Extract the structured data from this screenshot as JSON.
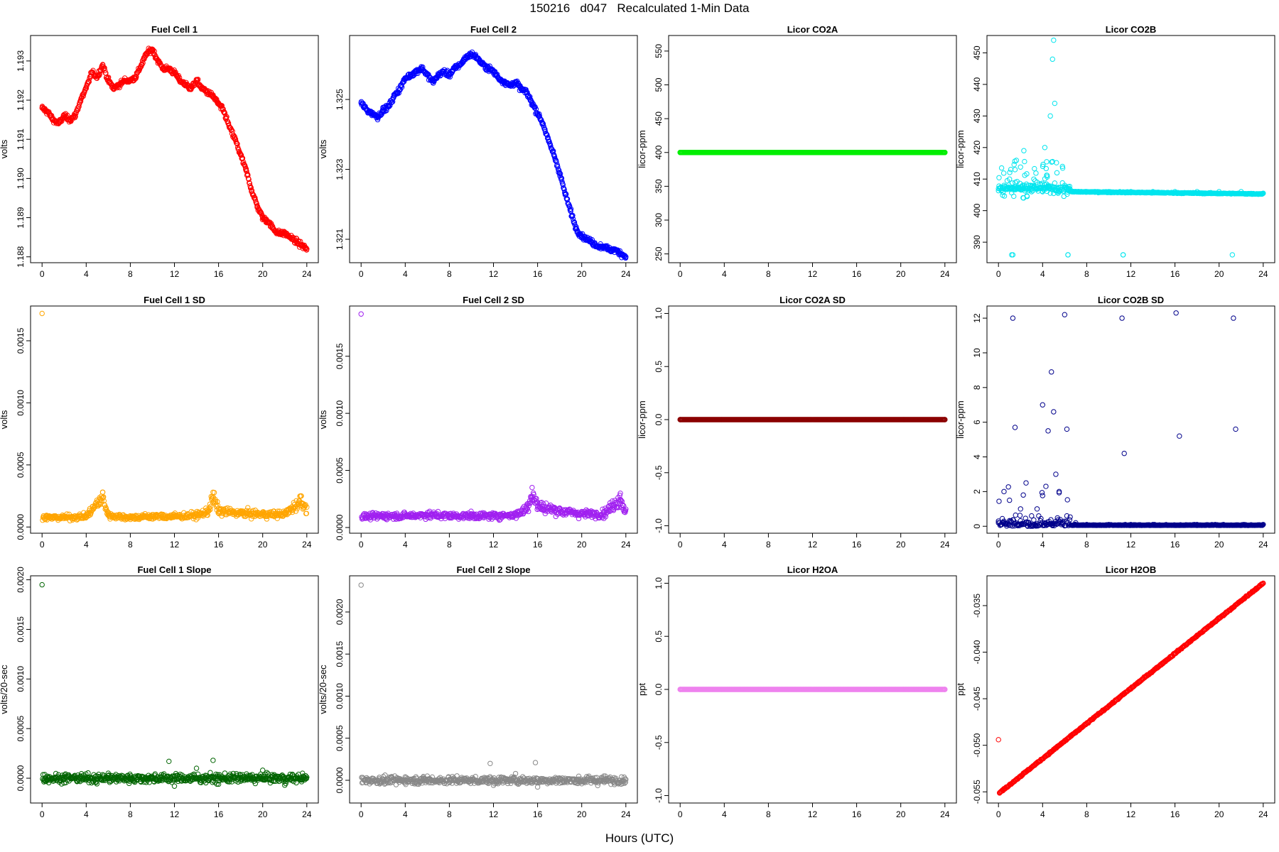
{
  "title": "150216   d047   Recalculated 1-Min Data",
  "x_label": "Hours (UTC)",
  "chart_data": [
    {
      "type": "scatter",
      "title": "Fuel Cell 1",
      "ylabel": "volts",
      "color": "#ff0000",
      "xlim": [
        0,
        24
      ],
      "ylim": [
        1.18785,
        1.19365
      ],
      "xticks": [
        "0",
        "4",
        "8",
        "12",
        "16",
        "20",
        "24"
      ],
      "yticks": [
        "1.188",
        "1.189",
        "1.190",
        "1.191",
        "1.192",
        "1.193"
      ],
      "series": [
        {
          "x": [
            0,
            0.5,
            1,
            1.5,
            2,
            2.5,
            3,
            3.5,
            4,
            4.5,
            5,
            5.5,
            6,
            6.5,
            7,
            7.5,
            8,
            8.5,
            9,
            9.5,
            10,
            10.5,
            11,
            11.5,
            12,
            12.5,
            13,
            13.5,
            14,
            14.5,
            15,
            15.5,
            16,
            16.5,
            17,
            17.5,
            18,
            18.5,
            19,
            19.5,
            20,
            20.5,
            21,
            21.5,
            22,
            22.5,
            23,
            23.5,
            24
          ],
          "y": [
            1.1918,
            1.1917,
            1.1915,
            1.1914,
            1.1916,
            1.1915,
            1.1916,
            1.192,
            1.1923,
            1.1927,
            1.1926,
            1.1929,
            1.1925,
            1.1923,
            1.1924,
            1.1925,
            1.1925,
            1.1926,
            1.1929,
            1.1932,
            1.1933,
            1.193,
            1.1928,
            1.1928,
            1.1927,
            1.1925,
            1.1924,
            1.1923,
            1.1925,
            1.1923,
            1.1922,
            1.1921,
            1.1919,
            1.1917,
            1.1913,
            1.191,
            1.1906,
            1.1902,
            1.1897,
            1.1893,
            1.189,
            1.1889,
            1.1887,
            1.1886,
            1.1886,
            1.1885,
            1.1884,
            1.1883,
            1.1882
          ]
        }
      ]
    },
    {
      "type": "scatter",
      "title": "Fuel Cell 2",
      "ylabel": "volts",
      "color": "#0000ff",
      "xlim": [
        0,
        24
      ],
      "ylim": [
        1.32033,
        1.32683
      ],
      "xticks": [
        "0",
        "4",
        "8",
        "12",
        "16",
        "20",
        "24"
      ],
      "yticks": [
        "1.321",
        "1.323",
        "1.325"
      ],
      "series": [
        {
          "x": [
            0,
            0.5,
            1,
            1.5,
            2,
            2.5,
            3,
            3.5,
            4,
            4.5,
            5,
            5.5,
            6,
            6.5,
            7,
            7.5,
            8,
            8.5,
            9,
            9.5,
            10,
            10.5,
            11,
            11.5,
            12,
            12.5,
            13,
            13.5,
            14,
            14.5,
            15,
            15.5,
            16,
            16.5,
            17,
            17.5,
            18,
            18.5,
            19,
            19.5,
            20,
            20.5,
            21,
            21.5,
            22,
            22.5,
            23,
            23.5,
            24
          ],
          "y": [
            1.3249,
            1.3247,
            1.3246,
            1.3245,
            1.3247,
            1.3248,
            1.3251,
            1.3253,
            1.3256,
            1.3257,
            1.3258,
            1.3259,
            1.3257,
            1.3255,
            1.3257,
            1.3258,
            1.3257,
            1.3259,
            1.326,
            1.3262,
            1.3263,
            1.3262,
            1.326,
            1.3259,
            1.3258,
            1.3256,
            1.3255,
            1.3254,
            1.3255,
            1.3253,
            1.3252,
            1.3249,
            1.3246,
            1.3243,
            1.3238,
            1.3234,
            1.3229,
            1.3223,
            1.3218,
            1.3213,
            1.3211,
            1.321,
            1.3209,
            1.3208,
            1.3208,
            1.3207,
            1.3207,
            1.3206,
            1.3205
          ]
        }
      ]
    },
    {
      "type": "scatter",
      "title": "Licor CO2A",
      "ylabel": "licor-ppm",
      "color": "#00ee00",
      "xlim": [
        0,
        24
      ],
      "ylim": [
        237,
        573
      ],
      "xticks": [
        "0",
        "4",
        "8",
        "12",
        "16",
        "20",
        "24"
      ],
      "yticks": [
        "250",
        "300",
        "350",
        "400",
        "450",
        "500",
        "550"
      ],
      "series": [
        {
          "x": [
            0,
            24
          ],
          "y": [
            400,
            400
          ]
        }
      ]
    },
    {
      "type": "scatter",
      "title": "Licor CO2B",
      "ylabel": "licor-ppm",
      "color": "#00e5ee",
      "xlim": [
        0,
        24
      ],
      "ylim": [
        383.5,
        455.5
      ],
      "xticks": [
        "0",
        "4",
        "8",
        "12",
        "16",
        "20",
        "24"
      ],
      "yticks": [
        "390",
        "400",
        "410",
        "420",
        "430",
        "440",
        "450"
      ],
      "series": [
        {
          "x": [
            0,
            0.5,
            1,
            1.2,
            1.5,
            2,
            2.3,
            2.7,
            3,
            3.5,
            4,
            4.2,
            4.5,
            4.7,
            4.9,
            5,
            5.1,
            5.3,
            5.5,
            5.8,
            6,
            6.3,
            6.8,
            7.5,
            8,
            9,
            10,
            11,
            11.3,
            12,
            14,
            16,
            18,
            20,
            21.2,
            22,
            24
          ],
          "y": [
            407,
            408,
            410,
            386,
            413,
            407,
            419,
            408,
            406,
            409,
            406,
            420,
            408,
            430,
            448,
            454,
            434,
            412,
            406,
            414,
            408,
            386,
            406,
            406,
            406,
            406,
            406,
            406,
            386,
            406,
            406,
            406,
            406,
            406,
            386,
            406,
            405.5
          ]
        }
      ]
    },
    {
      "type": "scatter",
      "title": "Fuel Cell 1 SD",
      "ylabel": "volts",
      "color": "#ffa500",
      "xlim": [
        0,
        24
      ],
      "ylim": [
        -5e-05,
        0.00178
      ],
      "xticks": [
        "0",
        "4",
        "8",
        "12",
        "16",
        "20",
        "24"
      ],
      "yticks": [
        "0.0000",
        "0.0005",
        "0.0010",
        "0.0015"
      ],
      "series": [
        {
          "x": [
            0,
            0.5,
            2,
            4,
            5.5,
            6,
            8,
            10,
            12,
            14,
            15,
            15.5,
            16,
            18,
            20,
            22,
            23.5,
            24
          ],
          "y": [
            0.00172,
            9e-05,
            9e-05,
            0.0001,
            0.00028,
            0.00011,
            9e-05,
            0.0001,
            0.0001,
            0.00011,
            0.00014,
            0.00028,
            0.00015,
            0.00013,
            0.00012,
            0.00012,
            0.00025,
            0.00016
          ]
        }
      ]
    },
    {
      "type": "scatter",
      "title": "Fuel Cell 2 SD",
      "ylabel": "volts",
      "color": "#a020f0",
      "xlim": [
        0,
        24
      ],
      "ylim": [
        -5e-05,
        0.00194
      ],
      "xticks": [
        "0",
        "4",
        "8",
        "12",
        "16",
        "20",
        "24"
      ],
      "yticks": [
        "0.0000",
        "0.0005",
        "0.0010",
        "0.0015"
      ],
      "series": [
        {
          "x": [
            0,
            0.5,
            2,
            4,
            6,
            8,
            10,
            12,
            14,
            15,
            15.5,
            16,
            18,
            20,
            22,
            23.5,
            24
          ],
          "y": [
            0.00187,
            0.00011,
            0.00012,
            0.00012,
            0.00013,
            0.00012,
            0.00012,
            0.00012,
            0.00013,
            0.00019,
            0.00035,
            0.00022,
            0.00017,
            0.00014,
            0.00014,
            0.0003,
            0.00016
          ]
        }
      ]
    },
    {
      "type": "scatter",
      "title": "Licor CO2A SD",
      "ylabel": "licor-ppm",
      "color": "#8b0000",
      "xlim": [
        0,
        24
      ],
      "ylim": [
        -1.07,
        1.07
      ],
      "xticks": [
        "0",
        "4",
        "8",
        "12",
        "16",
        "20",
        "24"
      ],
      "yticks": [
        "-1.0",
        "-0.5",
        "0.0",
        "0.5",
        "1.0"
      ],
      "series": [
        {
          "x": [
            0,
            24
          ],
          "y": [
            0,
            0
          ]
        }
      ]
    },
    {
      "type": "scatter",
      "title": "Licor CO2B SD",
      "ylabel": "licor-ppm",
      "color": "#00008b",
      "xlim": [
        0,
        24
      ],
      "ylim": [
        -0.4,
        12.7
      ],
      "xticks": [
        "0",
        "4",
        "8",
        "12",
        "16",
        "20",
        "24"
      ],
      "yticks": [
        "0",
        "2",
        "4",
        "6",
        "8",
        "10",
        "12"
      ],
      "series": [
        {
          "x": [
            0,
            0.5,
            1,
            1.3,
            1.5,
            2,
            2.5,
            3,
            3.5,
            4,
            4.3,
            4.5,
            4.8,
            5,
            5.2,
            5.5,
            6,
            6.2,
            7,
            8,
            10,
            11.2,
            11.4,
            12,
            14,
            16.1,
            16.4,
            18,
            21.3,
            21.5,
            24
          ],
          "y": [
            0.3,
            2.0,
            1.5,
            12.0,
            5.7,
            1.0,
            2.5,
            0.6,
            1.0,
            7.0,
            2.3,
            5.5,
            8.9,
            6.6,
            3.0,
            2.0,
            12.2,
            5.6,
            0.2,
            0.1,
            0.1,
            12.0,
            4.2,
            0.1,
            0.1,
            12.3,
            5.2,
            0.1,
            12.0,
            5.6,
            0.1
          ]
        }
      ]
    },
    {
      "type": "scatter",
      "title": "Fuel Cell 1 Slope",
      "ylabel": "volts/20-sec",
      "color": "#006400",
      "xlim": [
        0,
        24
      ],
      "ylim": [
        -0.00025,
        0.00204
      ],
      "xticks": [
        "0",
        "4",
        "8",
        "12",
        "16",
        "20",
        "24"
      ],
      "yticks": [
        "0.0000",
        "0.0005",
        "0.0010",
        "0.0015",
        "0.0020"
      ],
      "series": [
        {
          "x": [
            0,
            0.5,
            2,
            4,
            6,
            8,
            10,
            11.5,
            12,
            14,
            15.5,
            16,
            18,
            20,
            22,
            24
          ],
          "y": [
            0.00195,
            2e-05,
            0.0,
            -2e-05,
            5e-05,
            1e-05,
            0.0,
            0.00017,
            -8e-05,
            0.0001,
            0.00018,
            -6e-05,
            3e-05,
            8e-05,
            -7e-05,
            1e-05
          ]
        }
      ]
    },
    {
      "type": "scatter",
      "title": "Fuel Cell 2 Slope",
      "ylabel": "volts/20-sec",
      "color": "#888888",
      "xlim": [
        0,
        24
      ],
      "ylim": [
        -0.00027,
        0.00243
      ],
      "xticks": [
        "0",
        "4",
        "8",
        "12",
        "16",
        "20",
        "24"
      ],
      "yticks": [
        "0.0000",
        "0.0005",
        "0.0010",
        "0.0015",
        "0.0020"
      ],
      "series": [
        {
          "x": [
            0,
            0.5,
            2,
            4,
            6,
            8,
            10,
            11.7,
            12,
            14,
            15.8,
            16,
            18,
            20,
            22,
            24
          ],
          "y": [
            0.00232,
            3e-05,
            -2e-05,
            4e-05,
            5e-05,
            1e-05,
            0.0,
            0.0002,
            -6e-05,
            8e-05,
            0.00021,
            -8e-05,
            2e-05,
            -4e-05,
            5e-05,
            1e-05
          ]
        }
      ]
    },
    {
      "type": "scatter",
      "title": "Licor H2OA",
      "ylabel": "ppt",
      "color": "#ee82ee",
      "xlim": [
        0,
        24
      ],
      "ylim": [
        -1.07,
        1.07
      ],
      "xticks": [
        "0",
        "4",
        "8",
        "12",
        "16",
        "20",
        "24"
      ],
      "yticks": [
        "-1.0",
        "-0.5",
        "0.0",
        "0.5",
        "1.0"
      ],
      "series": [
        {
          "x": [
            0,
            24
          ],
          "y": [
            0,
            0
          ]
        }
      ]
    },
    {
      "type": "scatter",
      "title": "Licor H2OB",
      "ylabel": "ppt",
      "color": "#ff0000",
      "xlim": [
        0,
        24
      ],
      "ylim": [
        -0.0562,
        -0.0318
      ],
      "xticks": [
        "0",
        "4",
        "8",
        "12",
        "16",
        "20",
        "24"
      ],
      "yticks": [
        "-0.055",
        "-0.050",
        "-0.045",
        "-0.040",
        "-0.035"
      ],
      "series": [
        {
          "x": [
            0,
            0.1,
            24
          ],
          "y": [
            -0.0494,
            -0.0551,
            -0.0326
          ]
        }
      ]
    }
  ]
}
